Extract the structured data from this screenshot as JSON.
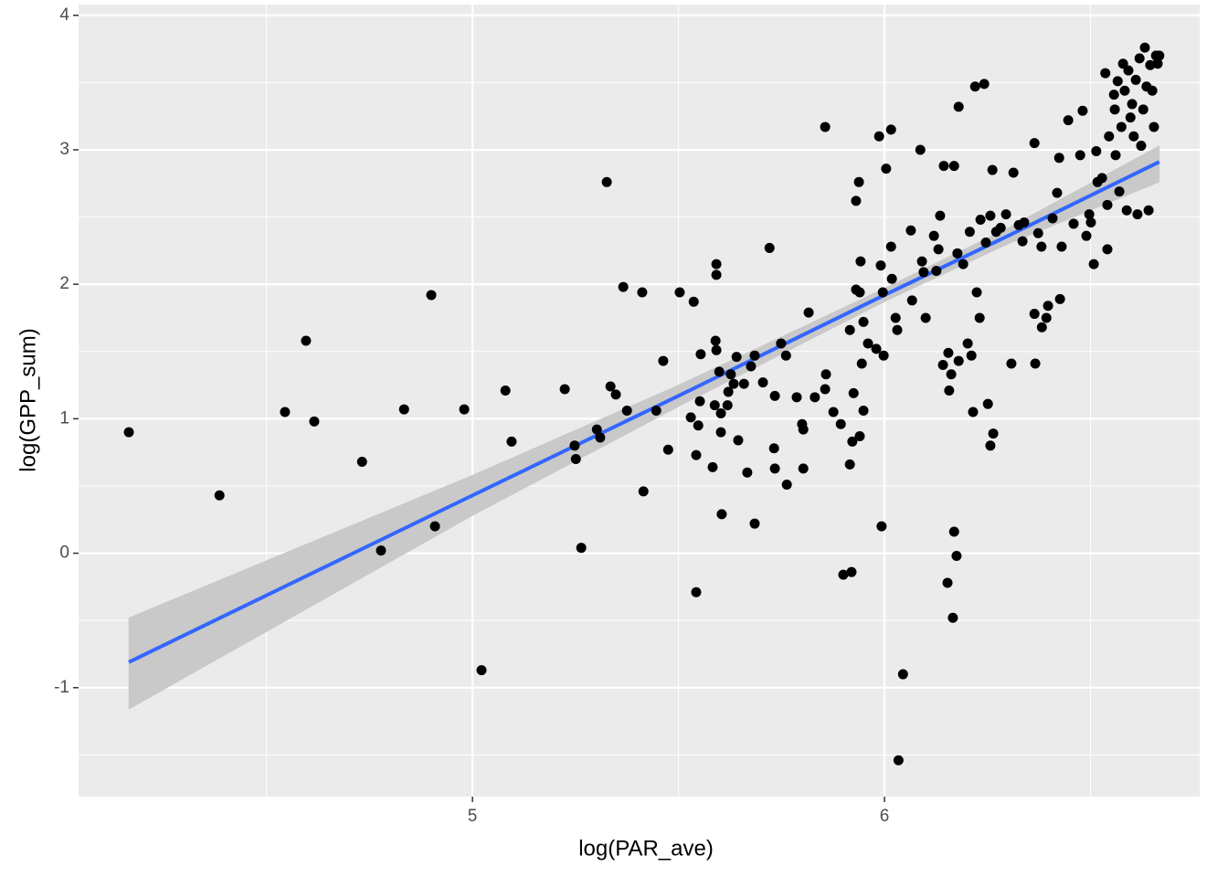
{
  "chart_data": {
    "type": "scatter",
    "x_label": "log(PAR_ave)",
    "y_label": "log(GPP_sum)",
    "xlim": [
      4.044,
      6.765
    ],
    "ylim": [
      -1.81,
      4.08
    ],
    "xticks": [
      5,
      6
    ],
    "yticks": [
      -1,
      0,
      1,
      2,
      3,
      4
    ],
    "xminor": [
      4.5,
      5.5,
      6.5
    ],
    "yminor": [
      -1.5,
      -0.5,
      0.5,
      1.5,
      2.5,
      3.5
    ],
    "grid": true,
    "color": "#000000",
    "x": [
      4.166,
      4.386,
      4.545,
      4.596,
      4.616,
      4.732,
      4.778,
      4.834,
      4.9,
      4.909,
      4.98,
      5.022,
      5.08,
      5.095,
      5.224,
      5.248,
      5.251,
      5.264,
      5.302,
      5.31,
      5.326,
      5.335,
      5.348,
      5.366,
      5.375,
      5.412,
      5.415,
      5.446,
      5.463,
      5.475,
      5.503,
      5.53,
      5.537,
      5.543,
      5.543,
      5.548,
      5.552,
      5.554,
      5.583,
      5.588,
      5.59,
      5.592,
      5.592,
      5.592,
      5.599,
      5.603,
      5.603,
      5.605,
      5.619,
      5.621,
      5.627,
      5.634,
      5.641,
      5.645,
      5.659,
      5.667,
      5.676,
      5.685,
      5.685,
      5.705,
      5.721,
      5.732,
      5.734,
      5.734,
      5.749,
      5.761,
      5.763,
      5.787,
      5.8,
      5.803,
      5.803,
      5.816,
      5.831,
      5.856,
      5.856,
      5.858,
      5.876,
      5.894,
      5.9,
      5.916,
      5.916,
      5.92,
      5.922,
      5.925,
      5.931,
      5.931,
      5.938,
      5.94,
      5.94,
      5.942,
      5.945,
      5.949,
      5.949,
      5.96,
      5.98,
      5.987,
      5.993,
      5.991,
      5.996,
      5.998,
      6.004,
      6.016,
      6.018,
      6.016,
      6.027,
      6.031,
      6.034,
      6.045,
      6.064,
      6.067,
      6.087,
      6.091,
      6.095,
      6.1,
      6.12,
      6.126,
      6.131,
      6.135,
      6.142,
      6.144,
      6.153,
      6.155,
      6.157,
      6.162,
      6.166,
      6.169,
      6.169,
      6.175,
      6.18,
      6.177,
      6.18,
      6.191,
      6.202,
      6.207,
      6.211,
      6.215,
      6.22,
      6.224,
      6.231,
      6.233,
      6.242,
      6.246,
      6.251,
      6.257,
      6.257,
      6.262,
      6.264,
      6.271,
      6.282,
      6.295,
      6.308,
      6.313,
      6.326,
      6.339,
      6.364,
      6.364,
      6.366,
      6.373,
      6.382,
      6.393,
      6.397,
      6.408,
      6.419,
      6.424,
      6.426,
      6.43,
      6.446,
      6.459,
      6.475,
      6.481,
      6.49,
      6.501,
      6.508,
      6.514,
      6.517,
      6.528,
      6.536,
      6.541,
      6.541,
      6.545,
      6.559,
      6.557,
      6.561,
      6.566,
      6.57,
      6.575,
      6.579,
      6.583,
      6.588,
      6.592,
      6.597,
      6.601,
      6.605,
      6.61,
      6.614,
      6.619,
      6.623,
      6.628,
      6.632,
      6.636,
      6.641,
      6.645,
      6.65,
      6.654,
      6.659,
      6.663,
      6.667,
      6.381,
      6.335,
      6.497
    ],
    "y": [
      0.9,
      0.43,
      1.05,
      1.58,
      0.98,
      0.68,
      0.02,
      1.07,
      1.92,
      0.2,
      1.07,
      -0.87,
      1.21,
      0.83,
      1.22,
      0.8,
      0.7,
      0.04,
      0.92,
      0.86,
      2.76,
      1.24,
      1.18,
      1.98,
      1.06,
      1.94,
      0.46,
      1.06,
      1.43,
      0.77,
      1.94,
      1.01,
      1.87,
      -0.29,
      0.73,
      0.95,
      1.13,
      1.48,
      0.64,
      1.1,
      1.58,
      2.15,
      2.07,
      1.51,
      1.35,
      1.04,
      0.9,
      0.29,
      1.1,
      1.2,
      1.33,
      1.26,
      1.46,
      0.84,
      1.26,
      0.6,
      1.39,
      0.22,
      1.47,
      1.27,
      2.27,
      0.78,
      1.17,
      0.63,
      1.56,
      1.47,
      0.51,
      1.16,
      0.96,
      0.92,
      0.63,
      1.79,
      1.16,
      3.17,
      1.22,
      1.33,
      1.05,
      0.96,
      -0.16,
      1.66,
      0.66,
      -0.14,
      0.83,
      1.19,
      1.96,
      2.62,
      2.76,
      1.94,
      0.87,
      2.17,
      1.41,
      1.06,
      1.72,
      1.56,
      1.52,
      3.1,
      0.2,
      2.14,
      1.94,
      1.47,
      2.86,
      3.15,
      2.04,
      2.28,
      1.75,
      1.66,
      -1.54,
      -0.9,
      2.4,
      1.88,
      3.0,
      2.17,
      2.09,
      1.75,
      2.36,
      2.1,
      2.26,
      2.51,
      1.4,
      2.88,
      -0.22,
      1.49,
      1.21,
      1.33,
      -0.48,
      0.16,
      2.88,
      -0.02,
      3.32,
      2.23,
      1.43,
      2.15,
      1.56,
      2.39,
      1.47,
      1.05,
      3.47,
      1.94,
      1.75,
      2.48,
      3.49,
      2.31,
      1.11,
      0.8,
      2.51,
      2.85,
      0.89,
      2.39,
      2.42,
      2.52,
      1.41,
      2.83,
      2.44,
      2.46,
      1.78,
      3.05,
      1.41,
      2.38,
      1.68,
      1.75,
      1.84,
      2.49,
      2.68,
      2.94,
      1.89,
      2.28,
      3.22,
      2.45,
      2.96,
      3.29,
      2.36,
      2.46,
      2.15,
      2.99,
      2.76,
      2.79,
      3.57,
      2.26,
      2.59,
      3.1,
      3.3,
      3.41,
      2.96,
      3.51,
      2.69,
      3.17,
      3.64,
      3.44,
      2.55,
      3.59,
      3.24,
      3.34,
      3.1,
      3.52,
      2.52,
      3.68,
      3.03,
      3.3,
      3.76,
      3.47,
      2.55,
      3.63,
      3.44,
      3.17,
      3.7,
      3.64,
      3.7,
      2.28,
      2.32,
      2.52
    ],
    "fit": {
      "color": "#3366FF",
      "band_color": "#C9C9C9",
      "x": [
        4.166,
        5.0,
        5.5,
        6.0,
        6.3,
        6.667
      ],
      "y": [
        -0.81,
        0.43,
        1.17,
        1.92,
        2.36,
        2.91
      ],
      "upper": [
        -0.48,
        0.58,
        1.25,
        1.97,
        2.42,
        3.03
      ],
      "lower": [
        -1.16,
        0.28,
        1.09,
        1.87,
        2.3,
        2.76
      ]
    }
  }
}
